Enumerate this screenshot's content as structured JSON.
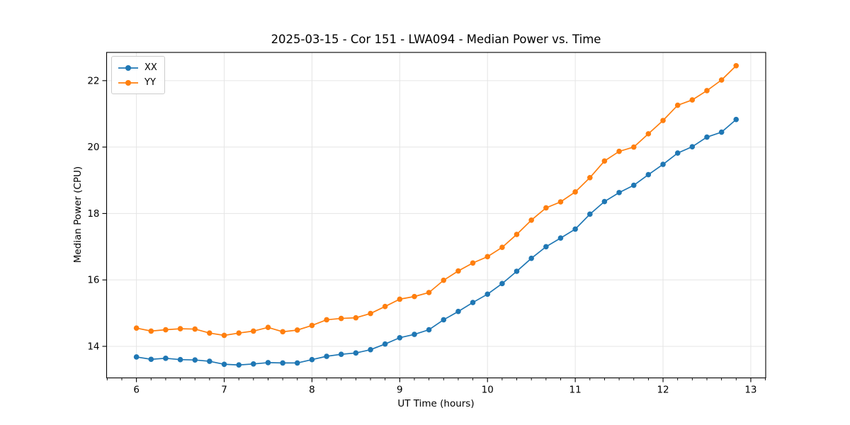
{
  "chart_data": {
    "type": "line",
    "title": "2025-03-15 - Cor 151 - LWA094 - Median Power vs. Time",
    "xlabel": "UT Time (hours)",
    "ylabel": "Median Power (CPU)",
    "xlim": [
      5.66,
      13.17
    ],
    "ylim": [
      13.05,
      22.85
    ],
    "xticks": [
      6,
      7,
      8,
      9,
      10,
      11,
      12,
      13
    ],
    "yticks": [
      14,
      16,
      18,
      20,
      22
    ],
    "minor_xtick_step_hours": 0.1667,
    "grid": true,
    "grid_color": "#e5e5e5",
    "legend_position": "upper-left",
    "x": [
      6.0,
      6.167,
      6.333,
      6.5,
      6.667,
      6.833,
      7.0,
      7.167,
      7.333,
      7.5,
      7.667,
      7.833,
      8.0,
      8.167,
      8.333,
      8.5,
      8.667,
      8.833,
      9.0,
      9.167,
      9.333,
      9.5,
      9.667,
      9.833,
      10.0,
      10.167,
      10.333,
      10.5,
      10.667,
      10.833,
      11.0,
      11.167,
      11.333,
      11.5,
      11.667,
      11.833,
      12.0,
      12.167,
      12.333,
      12.5,
      12.667,
      12.833
    ],
    "series": [
      {
        "name": "XX",
        "color": "#1f77b4",
        "values": [
          13.68,
          13.61,
          13.64,
          13.6,
          13.59,
          13.55,
          13.46,
          13.44,
          13.47,
          13.51,
          13.5,
          13.5,
          13.6,
          13.7,
          13.76,
          13.8,
          13.9,
          14.07,
          14.26,
          14.36,
          14.5,
          14.8,
          15.05,
          15.32,
          15.57,
          15.89,
          16.26,
          16.65,
          17.0,
          17.26,
          17.53,
          17.98,
          18.36,
          18.63,
          18.85,
          19.17,
          19.48,
          19.82,
          20.01,
          20.3,
          20.45,
          20.83
        ]
      },
      {
        "name": "YY",
        "color": "#ff7f0e",
        "values": [
          14.55,
          14.46,
          14.5,
          14.53,
          14.52,
          14.4,
          14.33,
          14.4,
          14.46,
          14.57,
          14.44,
          14.49,
          14.63,
          14.8,
          14.84,
          14.86,
          14.99,
          15.2,
          15.42,
          15.5,
          15.62,
          15.99,
          16.27,
          16.51,
          16.7,
          16.98,
          17.37,
          17.8,
          18.17,
          18.35,
          18.65,
          19.08,
          19.58,
          19.87,
          20.0,
          20.4,
          20.8,
          21.26,
          21.42,
          21.7,
          22.02,
          22.45
        ]
      }
    ]
  }
}
